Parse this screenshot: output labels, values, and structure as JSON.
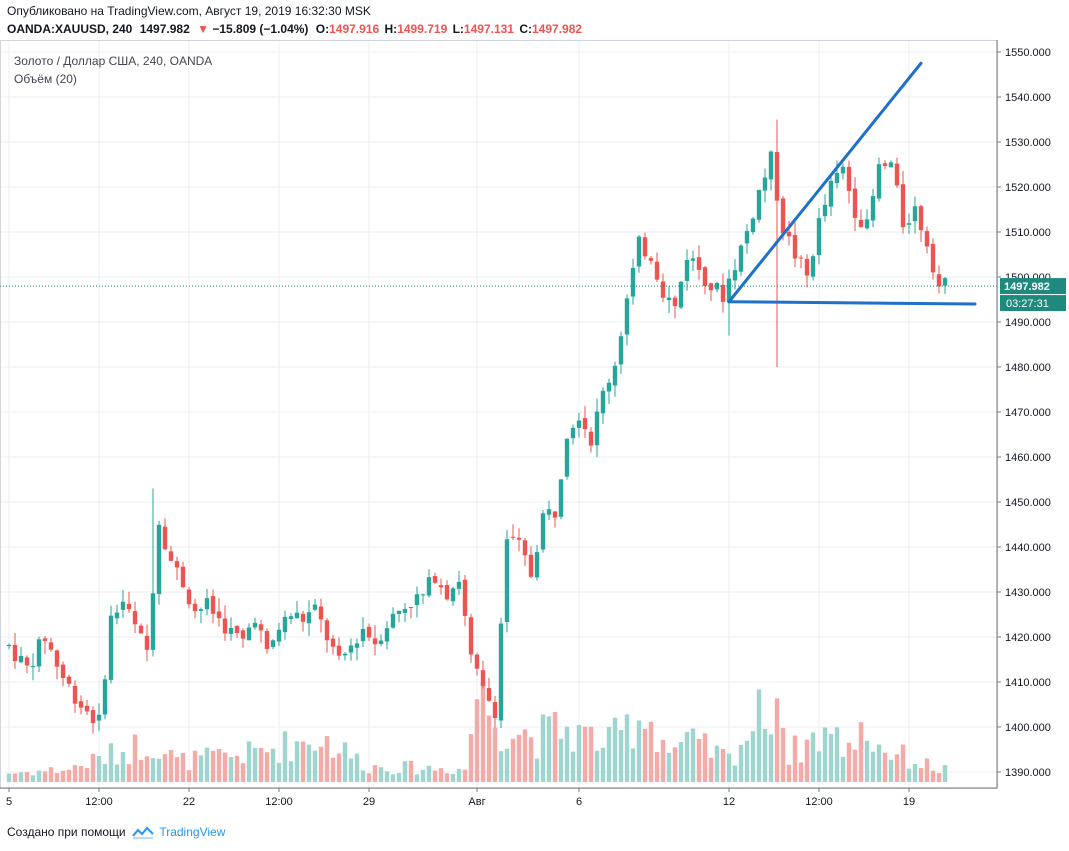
{
  "header": {
    "published": "Опубликовано на TradingView.com, Август 19, 2019 16:32:30 MSK",
    "symbol": "OANDA:XAUUSD, 240",
    "last": "1497.982",
    "change_arrow": "▼",
    "change": "−15.809 (−1.04%)",
    "o_label": "O:",
    "o_value": "1497.916",
    "h_label": "H:",
    "h_value": "1499.719",
    "l_label": "L:",
    "l_value": "1497.131",
    "c_label": "C:",
    "c_value": "1497.982"
  },
  "legend": {
    "series": "Золото / Доллар США, 240, OANDA",
    "volume": "Объём (20)"
  },
  "footer": {
    "created_with": "Создано при помощи",
    "brand": "TradingView"
  },
  "colors": {
    "up": "#26a69a",
    "down": "#ef5350",
    "volume_up": "#9fd5cf",
    "volume_down": "#f5aaa8",
    "trendline": "#1e70c8",
    "grid": "#eceef2",
    "price_label": "#1d8a7d"
  },
  "chart_data": {
    "type": "candlestick",
    "title": "Золото / Доллар США, 240, OANDA",
    "price_axis": {
      "range": [
        1386,
        1553
      ],
      "ticks": [
        "1550.000",
        "1540.000",
        "1530.000",
        "1520.000",
        "1510.000",
        "1500.000",
        "1490.000",
        "1480.000",
        "1470.000",
        "1460.000",
        "1450.000",
        "1440.000",
        "1430.000",
        "1420.000",
        "1410.000",
        "1400.000",
        "1390.000"
      ]
    },
    "time_axis": {
      "labels": [
        "5",
        "12:00",
        "22",
        "12:00",
        "29",
        "Авг",
        "6",
        "12",
        "12:00",
        "19"
      ],
      "label_bar_index": [
        0,
        15,
        30,
        45,
        60,
        78,
        95,
        120,
        135,
        150
      ]
    },
    "current_price_label": "1497.982",
    "countdown_label": "03:27:31",
    "current_price": 1497.982,
    "volume_indicator": "Объём (20)",
    "annotations": [
      {
        "type": "trendline",
        "from": {
          "bar": 120,
          "price": 1494.5
        },
        "to": {
          "bar": 152,
          "price": 1547.5
        }
      },
      {
        "type": "trendline",
        "from": {
          "bar": 120,
          "price": 1494.5
        },
        "to": {
          "bar": 161,
          "price": 1494.0
        }
      }
    ],
    "anchors": [
      [
        0,
        1418
      ],
      [
        3,
        1413
      ],
      [
        6,
        1420
      ],
      [
        9,
        1411
      ],
      [
        12,
        1405
      ],
      [
        15,
        1401
      ],
      [
        17,
        1424
      ],
      [
        19,
        1428
      ],
      [
        21,
        1422
      ],
      [
        23,
        1417
      ],
      [
        25,
        1446
      ],
      [
        27,
        1437
      ],
      [
        29,
        1432
      ],
      [
        31,
        1426
      ],
      [
        33,
        1427
      ],
      [
        35,
        1424
      ],
      [
        37,
        1421
      ],
      [
        39,
        1419
      ],
      [
        41,
        1425
      ],
      [
        43,
        1416
      ],
      [
        45,
        1422
      ],
      [
        47,
        1425
      ],
      [
        49,
        1424
      ],
      [
        51,
        1426
      ],
      [
        53,
        1420
      ],
      [
        55,
        1414
      ],
      [
        57,
        1418
      ],
      [
        59,
        1422
      ],
      [
        61,
        1419
      ],
      [
        63,
        1423
      ],
      [
        65,
        1426
      ],
      [
        67,
        1428
      ],
      [
        69,
        1429
      ],
      [
        71,
        1434
      ],
      [
        73,
        1430
      ],
      [
        75,
        1433
      ],
      [
        77,
        1415
      ],
      [
        79,
        1408
      ],
      [
        81,
        1404
      ],
      [
        83,
        1442
      ],
      [
        85,
        1440
      ],
      [
        87,
        1434
      ],
      [
        89,
        1447
      ],
      [
        91,
        1448
      ],
      [
        93,
        1466
      ],
      [
        95,
        1470
      ],
      [
        97,
        1464
      ],
      [
        99,
        1474
      ],
      [
        101,
        1481
      ],
      [
        103,
        1495
      ],
      [
        105,
        1507
      ],
      [
        107,
        1505
      ],
      [
        109,
        1497
      ],
      [
        111,
        1493
      ],
      [
        113,
        1505
      ],
      [
        115,
        1502
      ],
      [
        117,
        1498
      ],
      [
        119,
        1496
      ],
      [
        121,
        1503
      ],
      [
        123,
        1510
      ],
      [
        125,
        1519
      ],
      [
        127,
        1526
      ],
      [
        129,
        1511
      ],
      [
        131,
        1505
      ],
      [
        133,
        1500
      ],
      [
        135,
        1512
      ],
      [
        137,
        1520
      ],
      [
        139,
        1524
      ],
      [
        141,
        1515
      ],
      [
        143,
        1511
      ],
      [
        145,
        1524
      ],
      [
        147,
        1525
      ],
      [
        149,
        1512
      ],
      [
        151,
        1515
      ],
      [
        153,
        1508
      ],
      [
        155,
        1498
      ]
    ],
    "volume_anchors": [
      [
        0,
        0.07
      ],
      [
        10,
        0.1
      ],
      [
        24,
        0.32
      ],
      [
        28,
        0.16
      ],
      [
        40,
        0.22
      ],
      [
        52,
        0.35
      ],
      [
        60,
        0.12
      ],
      [
        76,
        0.1
      ],
      [
        78,
        0.7
      ],
      [
        82,
        0.45
      ],
      [
        88,
        0.35
      ],
      [
        92,
        0.42
      ],
      [
        100,
        0.3
      ],
      [
        106,
        0.55
      ],
      [
        110,
        0.25
      ],
      [
        114,
        0.3
      ],
      [
        120,
        0.18
      ],
      [
        128,
        0.7
      ],
      [
        130,
        0.22
      ],
      [
        136,
        0.4
      ],
      [
        140,
        0.25
      ],
      [
        142,
        0.48
      ],
      [
        144,
        0.3
      ],
      [
        150,
        0.18
      ],
      [
        155,
        0.1
      ]
    ]
  }
}
